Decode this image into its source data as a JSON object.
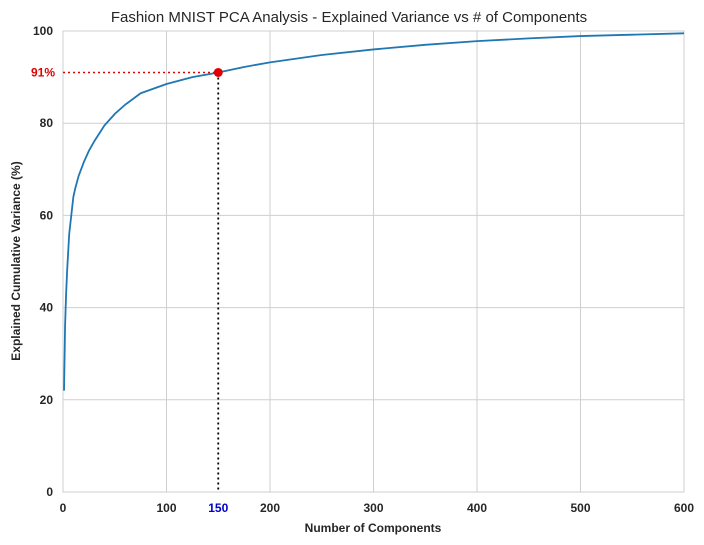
{
  "chart_data": {
    "type": "line",
    "title": "Fashion MNIST PCA Analysis - Explained Variance vs # of Components",
    "xlabel": "Number of Components",
    "ylabel": "Explained Cumulative Variance (%)",
    "xlim": [
      0,
      600
    ],
    "ylim": [
      0,
      100
    ],
    "xticks": [
      0,
      100,
      200,
      300,
      400,
      500,
      600
    ],
    "yticks": [
      0,
      20,
      40,
      60,
      80,
      100
    ],
    "grid": true,
    "line_color": "#1f77b4",
    "series": [
      {
        "x": [
          1,
          2,
          3,
          4,
          5,
          6,
          8,
          10,
          12,
          15,
          20,
          25,
          30,
          40,
          50,
          60,
          75,
          100,
          125,
          150,
          175,
          200,
          250,
          300,
          350,
          400,
          450,
          500,
          550,
          600
        ],
        "y": [
          22,
          36,
          43,
          48,
          52,
          56,
          60,
          64,
          66,
          68.5,
          71.5,
          74,
          76,
          79.5,
          82,
          84,
          86.5,
          88.5,
          90,
          91,
          92.2,
          93.2,
          94.8,
          96,
          97,
          97.8,
          98.4,
          98.9,
          99.2,
          99.5
        ]
      }
    ],
    "highlight": {
      "x": 150,
      "y": 91,
      "x_label": "150",
      "y_label": "91%",
      "x_color": "#0000cc",
      "y_color": "#e00000",
      "marker_color": "#e00000"
    }
  }
}
